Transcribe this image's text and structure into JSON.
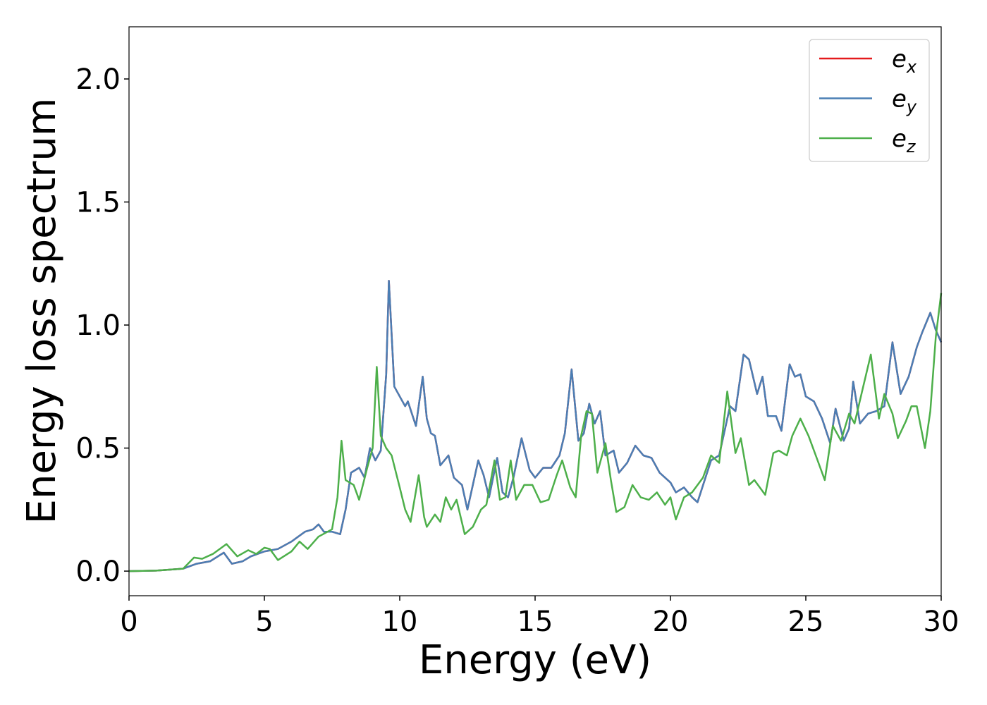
{
  "chart_data": {
    "type": "line",
    "xlabel": "Energy (eV)",
    "ylabel": "Energy loss spectrum",
    "xlim": [
      0,
      30
    ],
    "xticks": [
      0,
      5,
      10,
      15,
      20,
      25,
      30
    ],
    "ylim": [
      -0.1,
      2.212
    ],
    "yticks": [
      {
        "value": 0,
        "label": "0.0"
      },
      0.5,
      {
        "value": 1,
        "label": "1.0"
      },
      1.5,
      {
        "value": 2,
        "label": "2.0"
      }
    ],
    "legend": "upper right",
    "series": [
      {
        "name": "e",
        "subscript": "x",
        "color": "#e41a1c",
        "x": [
          0,
          1,
          2,
          2.5,
          3,
          3.5,
          3.8,
          4.2,
          4.5,
          5,
          5.5,
          6,
          6.5,
          6.8,
          7,
          7.2,
          7.5,
          7.8,
          8,
          8.2,
          8.5,
          8.7,
          8.9,
          9.1,
          9.3,
          9.5,
          9.6,
          9.8,
          10,
          10.2,
          10.3,
          10.6,
          10.85,
          11,
          11.15,
          11.3,
          11.5,
          11.8,
          12,
          12.3,
          12.5,
          12.9,
          13.1,
          13.3,
          13.6,
          13.8,
          14,
          14.2,
          14.5,
          14.8,
          15,
          15.3,
          15.6,
          15.9,
          16.1,
          16.35,
          16.6,
          16.8,
          17,
          17.2,
          17.4,
          17.6,
          17.9,
          18.1,
          18.4,
          18.7,
          19,
          19.3,
          19.6,
          20,
          20.2,
          20.5,
          20.8,
          21,
          21.5,
          21.8,
          22.2,
          22.4,
          22.7,
          22.9,
          23.2,
          23.4,
          23.6,
          23.9,
          24.1,
          24.4,
          24.6,
          24.8,
          25,
          25.3,
          25.6,
          25.9,
          26.1,
          26.4,
          26.6,
          26.75,
          27,
          27.3,
          27.6,
          27.9,
          28.2,
          28.5,
          28.8,
          29.1,
          29.3,
          29.6,
          29.8,
          30
        ],
        "values": [
          0,
          0.002,
          0.01,
          0.03,
          0.04,
          0.075,
          0.03,
          0.04,
          0.06,
          0.08,
          0.09,
          0.12,
          0.16,
          0.17,
          0.19,
          0.16,
          0.16,
          0.15,
          0.25,
          0.4,
          0.42,
          0.38,
          0.5,
          0.45,
          0.49,
          0.8,
          1.18,
          0.75,
          0.71,
          0.67,
          0.69,
          0.59,
          0.79,
          0.62,
          0.56,
          0.55,
          0.43,
          0.47,
          0.38,
          0.35,
          0.25,
          0.45,
          0.39,
          0.3,
          0.46,
          0.32,
          0.3,
          0.38,
          0.54,
          0.41,
          0.38,
          0.42,
          0.42,
          0.47,
          0.56,
          0.82,
          0.53,
          0.56,
          0.68,
          0.6,
          0.65,
          0.47,
          0.49,
          0.4,
          0.44,
          0.51,
          0.47,
          0.46,
          0.4,
          0.36,
          0.32,
          0.34,
          0.3,
          0.28,
          0.45,
          0.47,
          0.67,
          0.65,
          0.88,
          0.86,
          0.72,
          0.79,
          0.63,
          0.63,
          0.57,
          0.84,
          0.79,
          0.8,
          0.71,
          0.69,
          0.62,
          0.52,
          0.66,
          0.53,
          0.58,
          0.77,
          0.6,
          0.64,
          0.65,
          0.67,
          0.93,
          0.72,
          0.79,
          0.91,
          0.97,
          1.05,
          0.98,
          0.93
        ]
      },
      {
        "name": "e",
        "subscript": "y",
        "color": "#4a7eb4",
        "x": [
          0,
          1,
          2,
          2.5,
          3,
          3.5,
          3.8,
          4.2,
          4.5,
          5,
          5.5,
          6,
          6.5,
          6.8,
          7,
          7.2,
          7.5,
          7.8,
          8,
          8.2,
          8.5,
          8.7,
          8.9,
          9.1,
          9.3,
          9.5,
          9.6,
          9.8,
          10,
          10.2,
          10.3,
          10.6,
          10.85,
          11,
          11.15,
          11.3,
          11.5,
          11.8,
          12,
          12.3,
          12.5,
          12.9,
          13.1,
          13.3,
          13.6,
          13.8,
          14,
          14.2,
          14.5,
          14.8,
          15,
          15.3,
          15.6,
          15.9,
          16.1,
          16.35,
          16.6,
          16.8,
          17,
          17.2,
          17.4,
          17.6,
          17.9,
          18.1,
          18.4,
          18.7,
          19,
          19.3,
          19.6,
          20,
          20.2,
          20.5,
          20.8,
          21,
          21.5,
          21.8,
          22.2,
          22.4,
          22.7,
          22.9,
          23.2,
          23.4,
          23.6,
          23.9,
          24.1,
          24.4,
          24.6,
          24.8,
          25,
          25.3,
          25.6,
          25.9,
          26.1,
          26.4,
          26.6,
          26.75,
          27,
          27.3,
          27.6,
          27.9,
          28.2,
          28.5,
          28.8,
          29.1,
          29.3,
          29.6,
          29.8,
          30
        ],
        "values": [
          0,
          0.002,
          0.01,
          0.03,
          0.04,
          0.075,
          0.03,
          0.04,
          0.06,
          0.08,
          0.09,
          0.12,
          0.16,
          0.17,
          0.19,
          0.16,
          0.16,
          0.15,
          0.25,
          0.4,
          0.42,
          0.38,
          0.5,
          0.45,
          0.49,
          0.8,
          1.18,
          0.75,
          0.71,
          0.67,
          0.69,
          0.59,
          0.79,
          0.62,
          0.56,
          0.55,
          0.43,
          0.47,
          0.38,
          0.35,
          0.25,
          0.45,
          0.39,
          0.3,
          0.46,
          0.32,
          0.3,
          0.38,
          0.54,
          0.41,
          0.38,
          0.42,
          0.42,
          0.47,
          0.56,
          0.82,
          0.53,
          0.56,
          0.68,
          0.6,
          0.65,
          0.47,
          0.49,
          0.4,
          0.44,
          0.51,
          0.47,
          0.46,
          0.4,
          0.36,
          0.32,
          0.34,
          0.3,
          0.28,
          0.45,
          0.47,
          0.67,
          0.65,
          0.88,
          0.86,
          0.72,
          0.79,
          0.63,
          0.63,
          0.57,
          0.84,
          0.79,
          0.8,
          0.71,
          0.69,
          0.62,
          0.52,
          0.66,
          0.53,
          0.58,
          0.77,
          0.6,
          0.64,
          0.65,
          0.67,
          0.93,
          0.72,
          0.79,
          0.91,
          0.97,
          1.05,
          0.98,
          0.93
        ]
      },
      {
        "name": "e",
        "subscript": "z",
        "color": "#4daf4a",
        "x": [
          0,
          1,
          2,
          2.4,
          2.7,
          3.1,
          3.6,
          4,
          4.4,
          4.7,
          5,
          5.2,
          5.5,
          6,
          6.3,
          6.6,
          7,
          7.5,
          7.7,
          7.85,
          8,
          8.3,
          8.5,
          8.8,
          9,
          9.15,
          9.3,
          9.5,
          9.7,
          10,
          10.2,
          10.4,
          10.7,
          10.9,
          11,
          11.3,
          11.5,
          11.7,
          11.9,
          12.1,
          12.4,
          12.7,
          13,
          13.2,
          13.5,
          13.7,
          13.9,
          14.1,
          14.3,
          14.6,
          14.9,
          15.2,
          15.5,
          15.8,
          16,
          16.3,
          16.5,
          16.7,
          16.9,
          17.1,
          17.3,
          17.6,
          17.8,
          18,
          18.3,
          18.6,
          18.9,
          19.2,
          19.5,
          19.8,
          20,
          20.2,
          20.5,
          20.8,
          21.2,
          21.5,
          21.8,
          22.1,
          22.4,
          22.6,
          22.9,
          23.1,
          23.5,
          23.8,
          24,
          24.3,
          24.5,
          24.8,
          25.1,
          25.4,
          25.7,
          26,
          26.3,
          26.6,
          26.8,
          27.1,
          27.4,
          27.7,
          27.9,
          28.2,
          28.4,
          28.7,
          28.9,
          29.1,
          29.4,
          29.6,
          29.8,
          30
        ],
        "values": [
          0,
          0.002,
          0.01,
          0.055,
          0.05,
          0.07,
          0.11,
          0.06,
          0.085,
          0.07,
          0.095,
          0.09,
          0.045,
          0.08,
          0.12,
          0.09,
          0.14,
          0.17,
          0.3,
          0.53,
          0.37,
          0.35,
          0.29,
          0.42,
          0.5,
          0.83,
          0.55,
          0.5,
          0.47,
          0.34,
          0.25,
          0.2,
          0.39,
          0.22,
          0.18,
          0.23,
          0.2,
          0.3,
          0.25,
          0.29,
          0.15,
          0.18,
          0.25,
          0.27,
          0.45,
          0.29,
          0.3,
          0.45,
          0.29,
          0.35,
          0.35,
          0.28,
          0.29,
          0.39,
          0.45,
          0.34,
          0.3,
          0.55,
          0.65,
          0.64,
          0.4,
          0.52,
          0.37,
          0.24,
          0.26,
          0.35,
          0.3,
          0.29,
          0.32,
          0.27,
          0.3,
          0.21,
          0.3,
          0.32,
          0.38,
          0.47,
          0.44,
          0.73,
          0.48,
          0.54,
          0.35,
          0.37,
          0.31,
          0.48,
          0.49,
          0.47,
          0.55,
          0.62,
          0.55,
          0.46,
          0.37,
          0.59,
          0.53,
          0.64,
          0.6,
          0.74,
          0.88,
          0.62,
          0.72,
          0.64,
          0.54,
          0.61,
          0.67,
          0.67,
          0.5,
          0.65,
          0.95,
          1.13
        ]
      }
    ]
  }
}
